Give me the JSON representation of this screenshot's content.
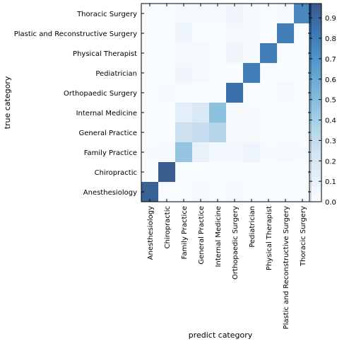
{
  "chart_data": {
    "type": "heatmap",
    "xlabel": "predict category",
    "ylabel": "true category",
    "x_categories": [
      "Anesthesiology",
      "Chiropractic",
      "Family Practice",
      "General Practice",
      "Internal Medicine",
      "Orthopaedic Surgery",
      "Pediatrician",
      "Physical Therapist",
      "Plastic and Reconstructive Surgery",
      "Thoracic Surgery"
    ],
    "y_categories": [
      "Thoracic Surgery",
      "Plastic and Reconstructive Surgery",
      "Physical Therapist",
      "Pediatrician",
      "Orthopaedic Surgery",
      "Internal Medicine",
      "General Practice",
      "Family Practice",
      "Chiropractic",
      "Anesthesiology"
    ],
    "values": [
      [
        0.0,
        0.0,
        0.02,
        0.02,
        0.03,
        0.05,
        0.01,
        0.0,
        0.03,
        0.75
      ],
      [
        0.0,
        0.0,
        0.06,
        0.0,
        0.0,
        0.03,
        0.01,
        0.0,
        0.8,
        0.0
      ],
      [
        0.0,
        0.0,
        0.01,
        0.02,
        0.0,
        0.05,
        0.01,
        0.8,
        0.0,
        0.0
      ],
      [
        0.0,
        0.0,
        0.05,
        0.03,
        0.0,
        0.0,
        0.8,
        0.0,
        0.0,
        0.0
      ],
      [
        0.0,
        0.01,
        0.0,
        0.0,
        0.0,
        0.86,
        0.0,
        0.0,
        0.03,
        0.0
      ],
      [
        0.0,
        0.0,
        0.13,
        0.19,
        0.47,
        0.01,
        0.01,
        0.0,
        0.0,
        0.0
      ],
      [
        0.0,
        0.0,
        0.26,
        0.29,
        0.35,
        0.01,
        0.01,
        0.0,
        0.0,
        0.0
      ],
      [
        0.01,
        0.03,
        0.45,
        0.1,
        0.04,
        0.04,
        0.06,
        0.01,
        0.03,
        0.01
      ],
      [
        0.0,
        0.95,
        0.0,
        0.0,
        0.0,
        0.0,
        0.0,
        0.0,
        0.0,
        0.0
      ],
      [
        0.93,
        0.0,
        0.0,
        0.02,
        0.0,
        0.03,
        0.0,
        0.0,
        0.0,
        0.0
      ]
    ],
    "colorbar": {
      "vmin": 0.0,
      "vmax": 0.97,
      "ticks": [
        0.0,
        0.1,
        0.2,
        0.3,
        0.4,
        0.5,
        0.6,
        0.7,
        0.8,
        0.9
      ],
      "tick_labels": [
        "0.0",
        "0.1",
        "0.2",
        "0.3",
        "0.4",
        "0.5",
        "0.6",
        "0.7",
        "0.8",
        "0.9"
      ],
      "colormap": "Blues",
      "color_low": "#f7fbff",
      "color_high": "#08306b"
    },
    "grid": false
  }
}
